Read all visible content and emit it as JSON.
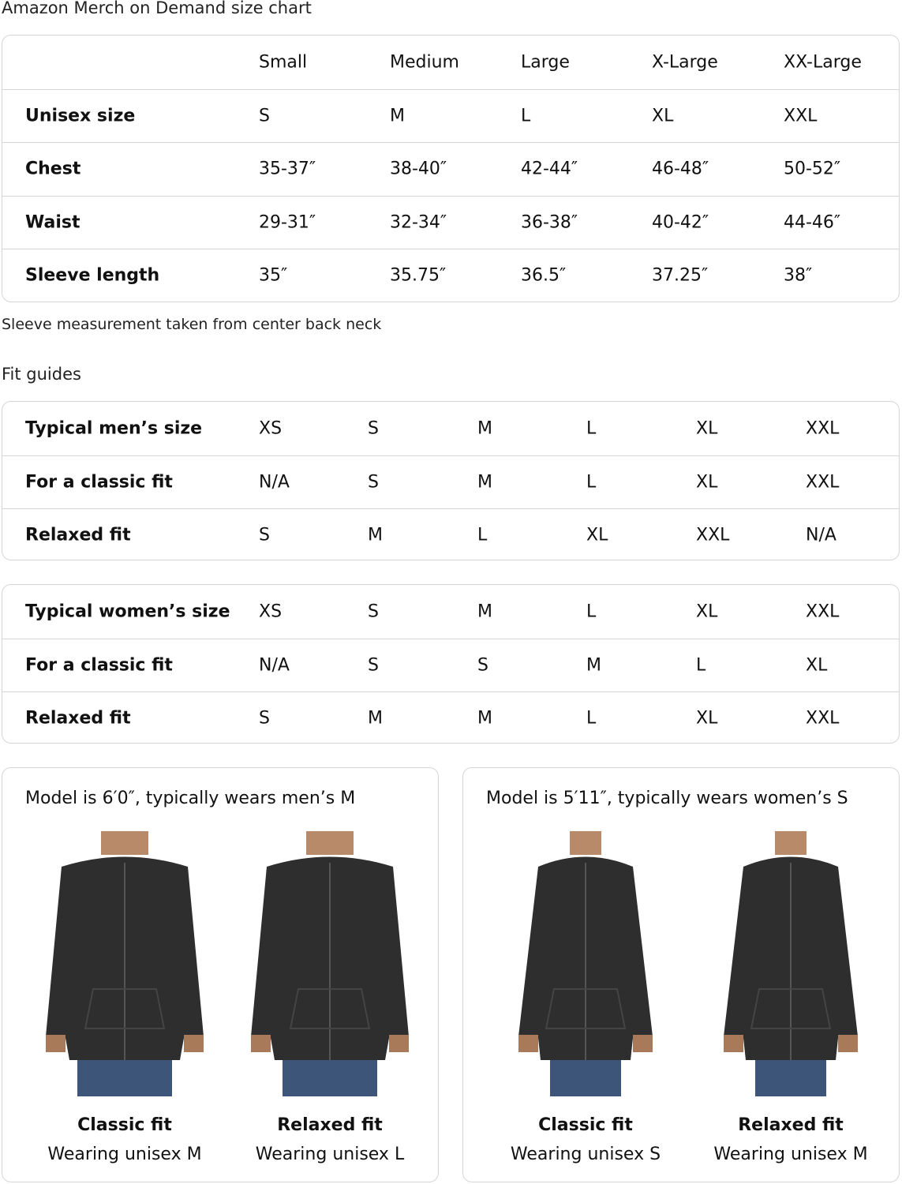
{
  "title": "Amazon Merch on Demand size chart",
  "size_chart": {
    "headers": [
      "",
      "Small",
      "Medium",
      "Large",
      "X-Large",
      "XX-Large"
    ],
    "rows": [
      {
        "label": "Unisex size",
        "values": [
          "S",
          "M",
          "L",
          "XL",
          "XXL"
        ]
      },
      {
        "label": "Chest",
        "values": [
          "35-37″",
          "38-40″",
          "42-44″",
          "46-48″",
          "50-52″"
        ]
      },
      {
        "label": "Waist",
        "values": [
          "29-31″",
          "32-34″",
          "36-38″",
          "40-42″",
          "44-46″"
        ]
      },
      {
        "label": "Sleeve length",
        "values": [
          "35″",
          "35.75″",
          "36.5″",
          "37.25″",
          "38″"
        ]
      }
    ]
  },
  "note": "Sleeve measurement taken from center back neck",
  "fit_guides_title": "Fit guides",
  "mens_fit": [
    {
      "label": "Typical men’s size",
      "values": [
        "XS",
        "S",
        "M",
        "L",
        "XL",
        "XXL"
      ]
    },
    {
      "label": "For a classic fit",
      "values": [
        "N/A",
        "S",
        "M",
        "L",
        "XL",
        "XXL"
      ]
    },
    {
      "label": "Relaxed fit",
      "values": [
        "S",
        "M",
        "L",
        "XL",
        "XXL",
        "N/A"
      ]
    }
  ],
  "womens_fit": [
    {
      "label": "Typical women’s size",
      "values": [
        "XS",
        "S",
        "M",
        "L",
        "XL",
        "XXL"
      ]
    },
    {
      "label": "For a classic fit",
      "values": [
        "N/A",
        "S",
        "S",
        "M",
        "L",
        "XL"
      ]
    },
    {
      "label": "Relaxed fit",
      "values": [
        "S",
        "M",
        "M",
        "L",
        "XL",
        "XXL"
      ]
    }
  ],
  "models": [
    {
      "title": "Model is 6′0″, typically wears men’s M",
      "photos": [
        {
          "fit": "Classic fit",
          "wearing": "Wearing unisex M"
        },
        {
          "fit": "Relaxed fit",
          "wearing": "Wearing unisex L"
        }
      ]
    },
    {
      "title": "Model is 5′11″, typically wears women’s S",
      "photos": [
        {
          "fit": "Classic fit",
          "wearing": "Wearing unisex S"
        },
        {
          "fit": "Relaxed fit",
          "wearing": "Wearing unisex M"
        }
      ]
    }
  ],
  "colors": {
    "border": "#d5d5d5",
    "hoodie": "#2e2e2e",
    "jeans": "#3d5578"
  }
}
